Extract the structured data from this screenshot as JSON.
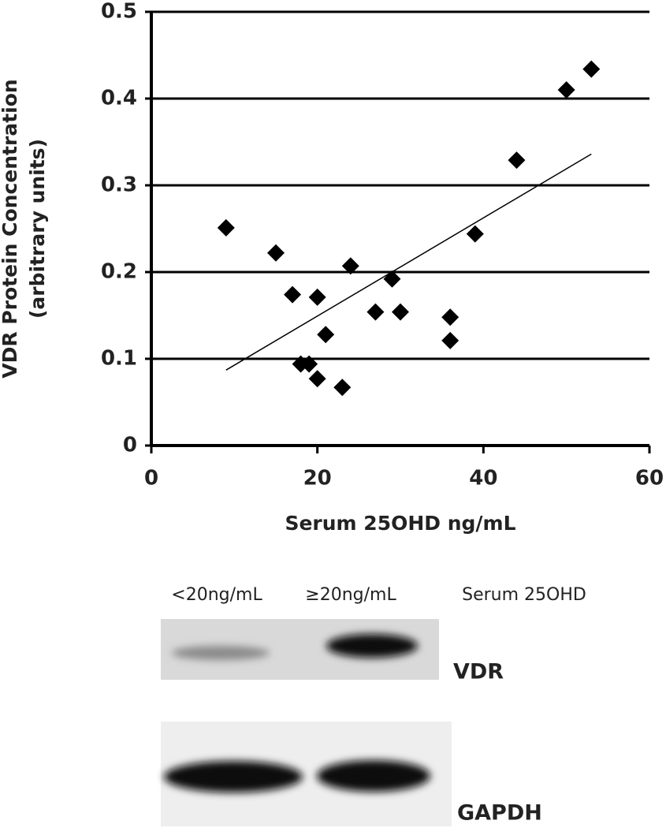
{
  "chart_data": {
    "type": "scatter",
    "x_label": "Serum 25OHD ng/mL",
    "y_label": [
      "VDR Protein Concentration",
      "(arbitrary units)"
    ],
    "xlim": [
      0,
      60
    ],
    "xticks": [
      0,
      20,
      40,
      60
    ],
    "ylim": [
      0,
      0.5
    ],
    "yticks": [
      0,
      0.1,
      0.2,
      0.3,
      0.4,
      0.5
    ],
    "grid": true,
    "grid_axis": "y",
    "color": "#000000",
    "series": [
      {
        "name": "VDR",
        "color": "#000000",
        "x": [
          9,
          15,
          17,
          20,
          24,
          29,
          27,
          30,
          21,
          18,
          19,
          20,
          23,
          36,
          36,
          39,
          44,
          50,
          53
        ],
        "values": [
          0.251,
          0.222,
          0.174,
          0.171,
          0.207,
          0.192,
          0.154,
          0.154,
          0.128,
          0.094,
          0.094,
          0.077,
          0.067,
          0.148,
          0.121,
          0.244,
          0.329,
          0.41,
          0.434
        ]
      }
    ],
    "trendline": {
      "color": "#000000",
      "x": [
        9,
        53
      ],
      "values": [
        0.087,
        0.336
      ]
    }
  },
  "blot": {
    "columns": [
      "<20ng/mL",
      "≥20ng/mL"
    ],
    "header": "Serum 25OHD",
    "bands": [
      "VDR",
      "GAPDH"
    ]
  }
}
